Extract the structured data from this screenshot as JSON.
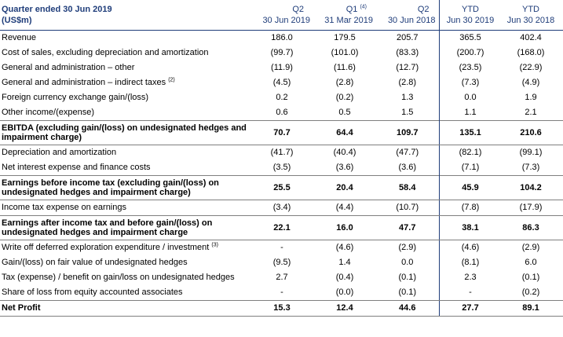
{
  "header": {
    "title": "Quarter ended 30 Jun 2019",
    "subtitle": "(US$m)",
    "columns": [
      {
        "line1": "Q2",
        "sup": "",
        "line2": "30 Jun 2019"
      },
      {
        "line1": "Q1",
        "sup": "(4)",
        "line2": "31 Mar 2019"
      },
      {
        "line1": "Q2",
        "sup": "",
        "line2": "30 Jun 2018"
      },
      {
        "line1": "YTD",
        "sup": "",
        "line2": "Jun 30 2019"
      },
      {
        "line1": "YTD",
        "sup": "",
        "line2": "Jun 30 2018"
      }
    ]
  },
  "rows": [
    {
      "label": "Revenue",
      "sup": "",
      "values": [
        "186.0",
        "179.5",
        "205.7",
        "365.5",
        "402.4"
      ]
    },
    {
      "label": "Cost of sales, excluding depreciation and amortization",
      "sup": "",
      "values": [
        "(99.7)",
        "(101.0)",
        "(83.3)",
        "(200.7)",
        "(168.0)"
      ]
    },
    {
      "label": "General and administration – other",
      "sup": "",
      "values": [
        "(11.9)",
        "(11.6)",
        "(12.7)",
        "(23.5)",
        "(22.9)"
      ]
    },
    {
      "label": "General and administration – indirect taxes",
      "sup": "(2)",
      "values": [
        "(4.5)",
        "(2.8)",
        "(2.8)",
        "(7.3)",
        "(4.9)"
      ]
    },
    {
      "label": "Foreign currency exchange gain/(loss)",
      "sup": "",
      "values": [
        "0.2",
        "(0.2)",
        "1.3",
        "0.0",
        "1.9"
      ]
    },
    {
      "label": "Other income/(expense)",
      "sup": "",
      "values": [
        "0.6",
        "0.5",
        "1.5",
        "1.1",
        "2.1"
      ]
    },
    {
      "label": "EBITDA (excluding gain/(loss) on undesignated hedges and impairment charge)",
      "sup": "",
      "values": [
        "70.7",
        "64.4",
        "109.7",
        "135.1",
        "210.6"
      ]
    },
    {
      "label": "Depreciation and amortization",
      "sup": "",
      "values": [
        "(41.7)",
        "(40.4)",
        "(47.7)",
        "(82.1)",
        "(99.1)"
      ]
    },
    {
      "label": "Net interest expense and finance costs",
      "sup": "",
      "values": [
        "(3.5)",
        "(3.6)",
        "(3.6)",
        "(7.1)",
        "(7.3)"
      ]
    },
    {
      "label": "Earnings before income tax (excluding gain/(loss) on undesignated hedges and impairment charge)",
      "sup": "",
      "values": [
        "25.5",
        "20.4",
        "58.4",
        "45.9",
        "104.2"
      ]
    },
    {
      "label": "Income tax expense on earnings",
      "sup": "",
      "values": [
        "(3.4)",
        "(4.4)",
        "(10.7)",
        "(7.8)",
        "(17.9)"
      ]
    },
    {
      "label": "Earnings after income tax and before gain/(loss) on undesignated hedges and impairment charge",
      "sup": "",
      "values": [
        "22.1",
        "16.0",
        "47.7",
        "38.1",
        "86.3"
      ]
    },
    {
      "label": "Write off deferred exploration expenditure / investment",
      "sup": "(3)",
      "values": [
        "-",
        "(4.6)",
        "(2.9)",
        "(4.6)",
        "(2.9)"
      ]
    },
    {
      "label": "Gain/(loss) on fair value of undesignated hedges",
      "sup": "",
      "values": [
        "(9.5)",
        "1.4",
        "0.0",
        "(8.1)",
        "6.0"
      ]
    },
    {
      "label": "Tax (expense) / benefit on gain/loss on undesignated hedges",
      "sup": "",
      "values": [
        "2.7",
        "(0.4)",
        "(0.1)",
        "2.3",
        "(0.1)"
      ]
    },
    {
      "label": "Share of loss from equity accounted associates",
      "sup": "",
      "values": [
        "-",
        "(0.0)",
        "(0.1)",
        "-",
        "(0.2)"
      ]
    },
    {
      "label": "Net Profit",
      "sup": "",
      "values": [
        "15.3",
        "12.4",
        "44.6",
        "27.7",
        "89.1"
      ]
    }
  ]
}
